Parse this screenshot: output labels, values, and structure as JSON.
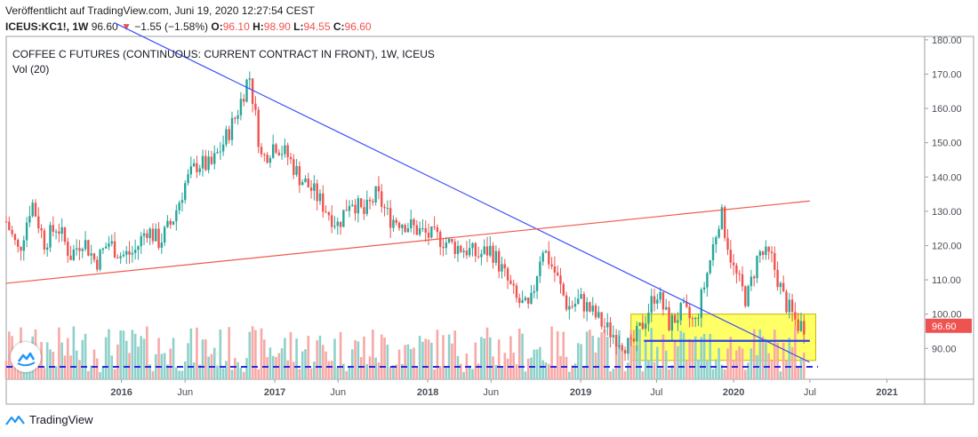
{
  "header": {
    "published": "Veröffentlicht auf TradingView.com, Juni 19, 2020 12:27:54 CEST",
    "symbol": "ICEUS:KC1!, 1W",
    "last": "96.60",
    "arrow": "▼",
    "change": "−1.55 (−1.58%)",
    "o_label": "O:",
    "o_value": "96.10",
    "h_label": "H:",
    "h_value": "98.90",
    "l_label": "L:",
    "l_value": "94.55",
    "c_label": "C:",
    "c_value": "96.60"
  },
  "legend": {
    "title": "COFFEE C FUTURES (CONTINUOUS: CURRENT CONTRACT IN FRONT), 1W, ICEUS",
    "volume": "Vol (20)"
  },
  "brand": {
    "name": "TradingView"
  },
  "colors": {
    "up": "#26a69a",
    "down": "#ef5350",
    "vol_up": "#8fd1ca",
    "vol_down": "#f7a9a7",
    "trend_blue": "#3f51f7",
    "trend_red": "#f05a4e",
    "zone_fill": "#ffff33",
    "support": "#3344dd",
    "vol_ma": "#2a2ae0"
  },
  "chart_data": {
    "type": "candlestick",
    "title": "COFFEE C FUTURES (CONTINUOUS: CURRENT CONTRACT IN FRONT), 1W, ICEUS",
    "y_axis": {
      "ticks": [
        "180.00",
        "170.00",
        "160.00",
        "150.00",
        "140.00",
        "130.00",
        "120.00",
        "110.00",
        "100.00",
        "90.00"
      ],
      "range": [
        81,
        181
      ]
    },
    "x_axis": {
      "ticks": [
        "2016",
        "Jun",
        "2017",
        "Jun",
        "2018",
        "Jun",
        "2019",
        "Jul",
        "2020",
        "Jul",
        "2021"
      ],
      "range": [
        "2015-04",
        "2021-04"
      ]
    },
    "last_price": "96.60",
    "path": [
      [
        "2015-04-01",
        127
      ],
      [
        "2015-05-01",
        118
      ],
      [
        "2015-06-01",
        133
      ],
      [
        "2015-07-01",
        121
      ],
      [
        "2015-08-01",
        126
      ],
      [
        "2015-09-01",
        117
      ],
      [
        "2015-10-01",
        122
      ],
      [
        "2015-11-01",
        115
      ],
      [
        "2015-12-01",
        121
      ],
      [
        "2016-01-01",
        117
      ],
      [
        "2016-02-01",
        118
      ],
      [
        "2016-03-01",
        125
      ],
      [
        "2016-04-01",
        121
      ],
      [
        "2016-05-01",
        127
      ],
      [
        "2016-06-01",
        138
      ],
      [
        "2016-07-01",
        144
      ],
      [
        "2016-08-01",
        143
      ],
      [
        "2016-09-01",
        150
      ],
      [
        "2016-10-01",
        158
      ],
      [
        "2016-11-01",
        170
      ],
      [
        "2016-12-01",
        145
      ],
      [
        "2017-01-01",
        150
      ],
      [
        "2017-02-01",
        146
      ],
      [
        "2017-03-01",
        140
      ],
      [
        "2017-04-01",
        136
      ],
      [
        "2017-05-01",
        131
      ],
      [
        "2017-06-01",
        126
      ],
      [
        "2017-07-01",
        134
      ],
      [
        "2017-08-01",
        129
      ],
      [
        "2017-09-01",
        135
      ],
      [
        "2017-10-01",
        128
      ],
      [
        "2017-11-01",
        127
      ],
      [
        "2017-12-01",
        125
      ],
      [
        "2018-01-01",
        123
      ],
      [
        "2018-02-01",
        122
      ],
      [
        "2018-03-01",
        120
      ],
      [
        "2018-04-01",
        119
      ],
      [
        "2018-05-01",
        117
      ],
      [
        "2018-06-01",
        119
      ],
      [
        "2018-07-01",
        112
      ],
      [
        "2018-08-01",
        104
      ],
      [
        "2018-09-01",
        101
      ],
      [
        "2018-10-01",
        120
      ],
      [
        "2018-11-01",
        112
      ],
      [
        "2018-12-01",
        102
      ],
      [
        "2019-01-01",
        104
      ],
      [
        "2019-02-01",
        100
      ],
      [
        "2019-03-01",
        96
      ],
      [
        "2019-04-01",
        93
      ],
      [
        "2019-05-01",
        90
      ],
      [
        "2019-06-01",
        98
      ],
      [
        "2019-07-01",
        107
      ],
      [
        "2019-08-01",
        97
      ],
      [
        "2019-09-01",
        101
      ],
      [
        "2019-10-01",
        97
      ],
      [
        "2019-11-01",
        113
      ],
      [
        "2019-12-01",
        130
      ],
      [
        "2020-01-01",
        113
      ],
      [
        "2020-02-01",
        104
      ],
      [
        "2020-03-01",
        118
      ],
      [
        "2020-04-01",
        116
      ],
      [
        "2020-05-01",
        104
      ],
      [
        "2020-06-01",
        97
      ],
      [
        "2020-06-19",
        96.6
      ]
    ],
    "annotations": {
      "downtrend_line": {
        "from": [
          "2015-12-15",
          185
        ],
        "to": [
          "2020-06-30",
          86
        ]
      },
      "uptrend_line": {
        "from": [
          "2015-04-01",
          109
        ],
        "to": [
          "2020-07-01",
          133
        ]
      },
      "support_zone": {
        "x": [
          "2019-05-01",
          "2020-07-15"
        ],
        "y": [
          86.5,
          100
        ]
      },
      "support_line": {
        "x": [
          "2019-06-01",
          "2020-07-01"
        ],
        "y": 92.2
      }
    },
    "volume": {
      "label": "Vol (20)",
      "ma_dashed": true
    }
  }
}
